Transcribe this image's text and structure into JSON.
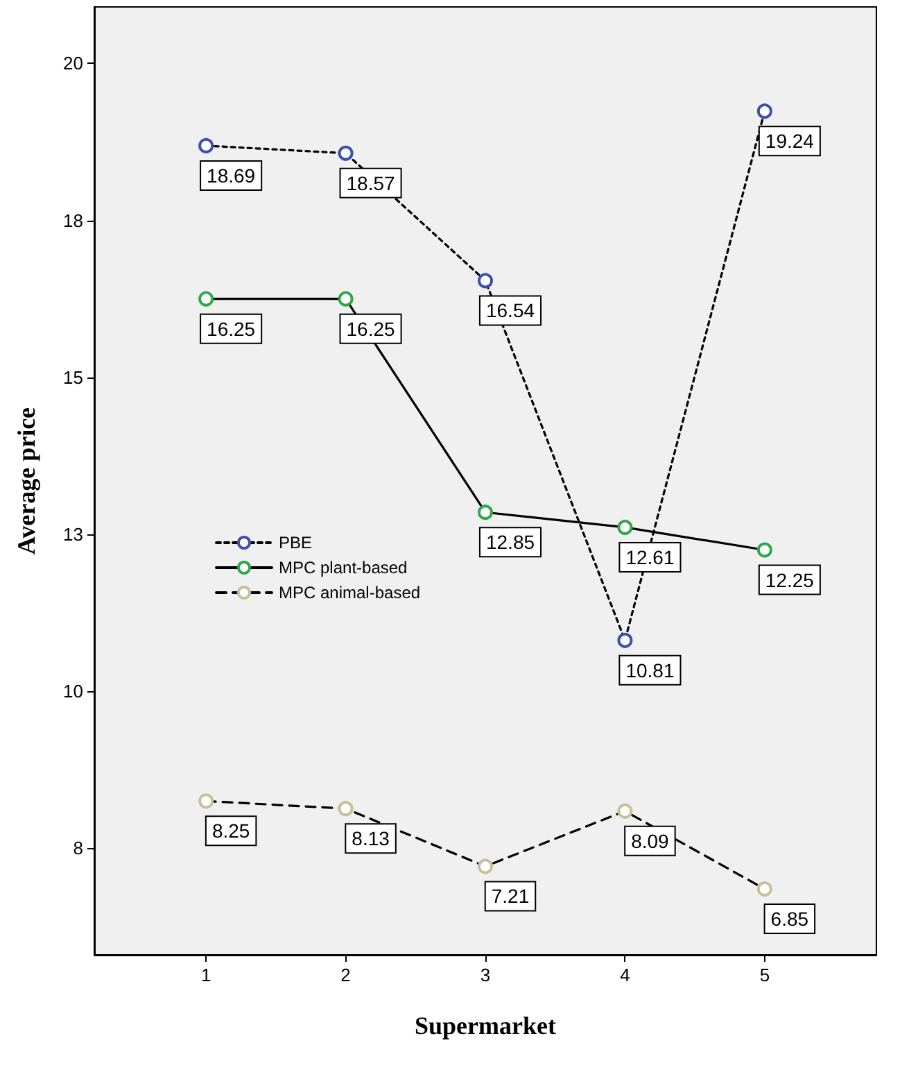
{
  "chart_data": {
    "type": "line",
    "xlabel": "Supermarket",
    "ylabel": "Average price",
    "x": [
      1,
      2,
      3,
      4,
      5
    ],
    "xlim": [
      0.2,
      5.8
    ],
    "xticks": [
      1,
      2,
      3,
      4,
      5
    ],
    "ylim": [
      5.8,
      20.9
    ],
    "yticks": [
      {
        "value": 7.5,
        "label": "8"
      },
      {
        "value": 10,
        "label": "10"
      },
      {
        "value": 12.5,
        "label": "13"
      },
      {
        "value": 15,
        "label": "15"
      },
      {
        "value": 17.5,
        "label": "18"
      },
      {
        "value": 20,
        "label": "20"
      }
    ],
    "series": [
      {
        "name": "PBE",
        "color": "#3a4fb0",
        "line_style": "dotted",
        "values": [
          18.69,
          18.57,
          16.54,
          10.81,
          19.24
        ]
      },
      {
        "name": "MPC plant-based",
        "color": "#2fa84a",
        "line_style": "solid",
        "values": [
          16.25,
          16.25,
          12.85,
          12.61,
          12.25
        ]
      },
      {
        "name": "MPC animal-based",
        "color": "#c8c09a",
        "line_style": "dashed",
        "values": [
          8.25,
          8.13,
          7.21,
          8.09,
          6.85
        ]
      }
    ],
    "marker": "circle",
    "data_labels": true,
    "legend": "left",
    "grid": false
  }
}
